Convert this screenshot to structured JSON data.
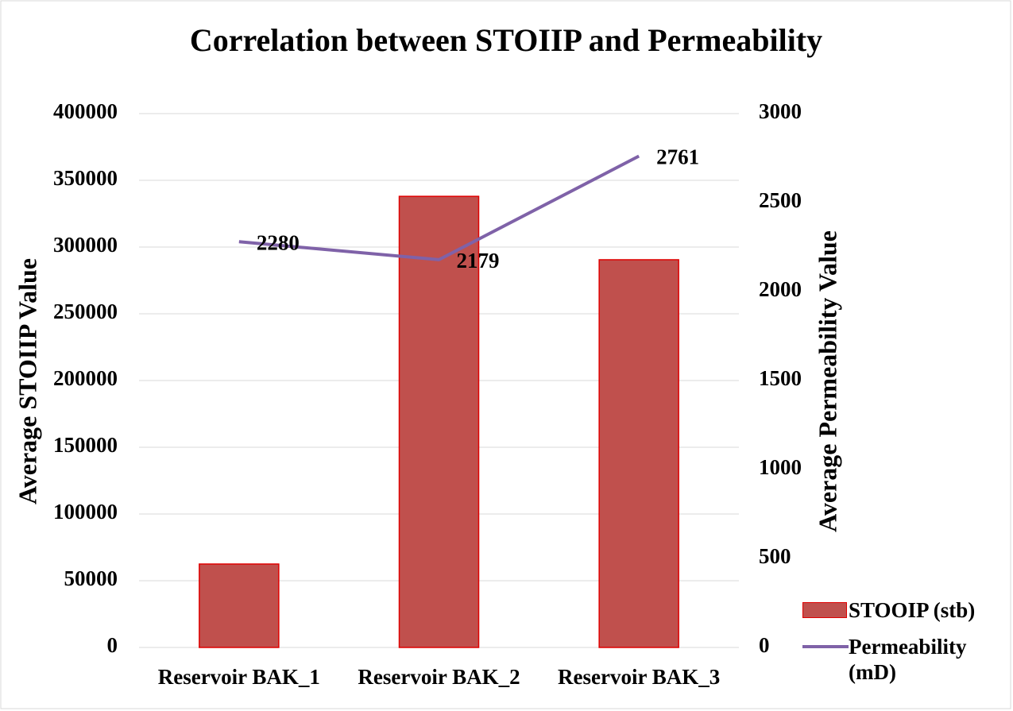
{
  "chart_data": {
    "type": "bar",
    "title": "Correlation between STOIIP and Permeability",
    "categories": [
      "Reservoir BAK_1",
      "Reservoir BAK_2",
      "Reservoir BAK_3"
    ],
    "series": [
      {
        "name": "STOOIP (stb)",
        "type": "bar",
        "color": "#c0504d",
        "values": [
          62500,
          338000,
          290500
        ]
      },
      {
        "name": "Permeability (mD)",
        "type": "line",
        "axis": "y2",
        "color": "#7f62a8",
        "values": [
          2280,
          2179,
          2761
        ],
        "data_labels": true
      }
    ],
    "ylabel": "Average STOIIP Value",
    "y2label": "Average Permeability Value",
    "ylim": [
      0,
      400000
    ],
    "yticks": [
      0,
      50000,
      100000,
      150000,
      200000,
      250000,
      300000,
      350000,
      400000
    ],
    "y2lim": [
      0,
      3000
    ],
    "y2ticks": [
      0,
      500,
      1000,
      1500,
      2000,
      2500,
      3000
    ],
    "grid": true,
    "legend": "bottom-right"
  }
}
